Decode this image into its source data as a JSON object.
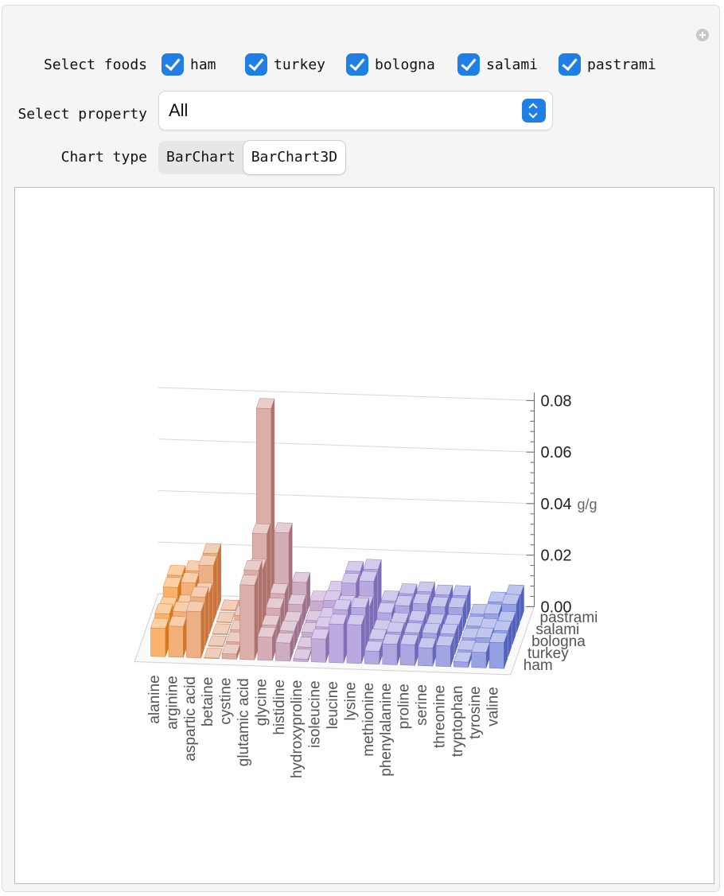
{
  "controls": {
    "select_foods_label": "Select foods",
    "foods": [
      {
        "label": "ham",
        "checked": true
      },
      {
        "label": "turkey",
        "checked": true
      },
      {
        "label": "bologna",
        "checked": true
      },
      {
        "label": "salami",
        "checked": true
      },
      {
        "label": "pastrami",
        "checked": true
      }
    ],
    "select_property_label": "Select property",
    "property_value": "All",
    "chart_type_label": "Chart type",
    "chart_types": [
      "BarChart",
      "BarChart3D"
    ],
    "chart_type_selected": "BarChart3D",
    "accent_color": "#1f7fe5"
  },
  "chart_data": {
    "type": "bar",
    "variant": "3d",
    "categories": [
      "alanine",
      "arginine",
      "aspartic acid",
      "betaine",
      "cystine",
      "glutamic acid",
      "glycine",
      "histidine",
      "hydroxyproline",
      "isoleucine",
      "leucine",
      "lysine",
      "methionine",
      "phenylalanine",
      "proline",
      "serine",
      "threonine",
      "tryptophan",
      "tyrosine",
      "valine"
    ],
    "series": [
      {
        "name": "ham",
        "values": [
          0.011,
          0.012,
          0.018,
          0.0002,
          0.002,
          0.029,
          0.009,
          0.007,
          0.001,
          0.009,
          0.015,
          0.015,
          0.005,
          0.008,
          0.008,
          0.007,
          0.008,
          0.002,
          0.006,
          0.01
        ]
      },
      {
        "name": "turkey",
        "values": [
          0.012,
          0.013,
          0.019,
          0.0003,
          0.002,
          0.03,
          0.009,
          0.007,
          0.001,
          0.009,
          0.016,
          0.017,
          0.005,
          0.008,
          0.008,
          0.008,
          0.008,
          0.002,
          0.007,
          0.01
        ]
      },
      {
        "name": "bologna",
        "values": [
          0.01,
          0.011,
          0.016,
          0.0003,
          0.002,
          0.026,
          0.011,
          0.006,
          0.002,
          0.008,
          0.013,
          0.013,
          0.004,
          0.007,
          0.008,
          0.007,
          0.007,
          0.002,
          0.006,
          0.009
        ]
      },
      {
        "name": "salami",
        "values": [
          0.013,
          0.015,
          0.022,
          0.0002,
          0.003,
          0.035,
          0.012,
          0.008,
          0.002,
          0.01,
          0.017,
          0.018,
          0.006,
          0.009,
          0.01,
          0.009,
          0.009,
          0.002,
          0.007,
          0.011
        ]
      },
      {
        "name": "pastrami",
        "values": [
          0.013,
          0.015,
          0.022,
          0.0003,
          0.003,
          0.079,
          0.031,
          0.012,
          0.005,
          0.009,
          0.017,
          0.018,
          0.006,
          0.009,
          0.01,
          0.009,
          0.009,
          0.002,
          0.007,
          0.01
        ]
      }
    ],
    "unit": "g/g",
    "zlim": [
      0,
      0.08
    ],
    "ticks": [
      "0.00",
      "0.02",
      "0.04",
      "0.06",
      "0.08"
    ],
    "grid": true,
    "colors": {
      "start": "#f7871e",
      "mid": "#9b7ed0",
      "end": "#5b6fd6"
    }
  }
}
